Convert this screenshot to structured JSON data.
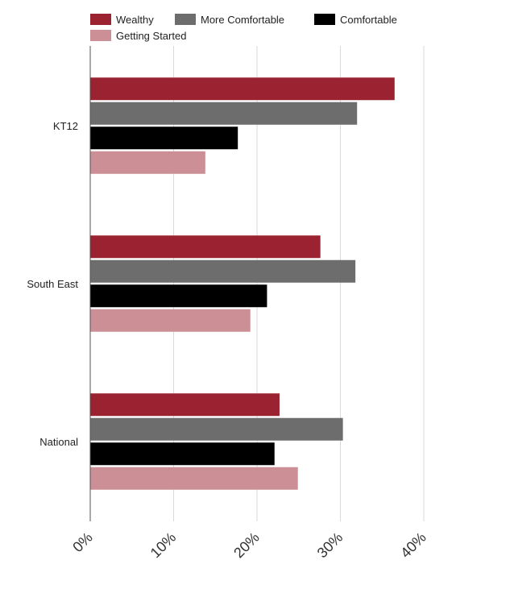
{
  "chart_data": {
    "type": "bar",
    "orientation": "horizontal",
    "categories": [
      "KT12",
      "South East",
      "National"
    ],
    "series": [
      {
        "name": "Wealthy",
        "color": "#9b2230",
        "values": [
          36.5,
          27.6,
          22.7
        ]
      },
      {
        "name": "More Comfortable",
        "color": "#6d6d6d",
        "values": [
          32.0,
          31.8,
          30.3
        ]
      },
      {
        "name": "Comfortable",
        "color": "#000000",
        "values": [
          17.7,
          21.2,
          22.1
        ]
      },
      {
        "name": "Getting Started",
        "color": "#cc8f96",
        "values": [
          13.8,
          19.2,
          24.9
        ]
      }
    ],
    "xlim": [
      0,
      40
    ],
    "xticks": [
      0,
      10,
      20,
      30,
      40
    ],
    "xtick_labels": [
      "0%",
      "10%",
      "20%",
      "30%",
      "40%"
    ],
    "grid": true,
    "legend_position": "top-left"
  }
}
